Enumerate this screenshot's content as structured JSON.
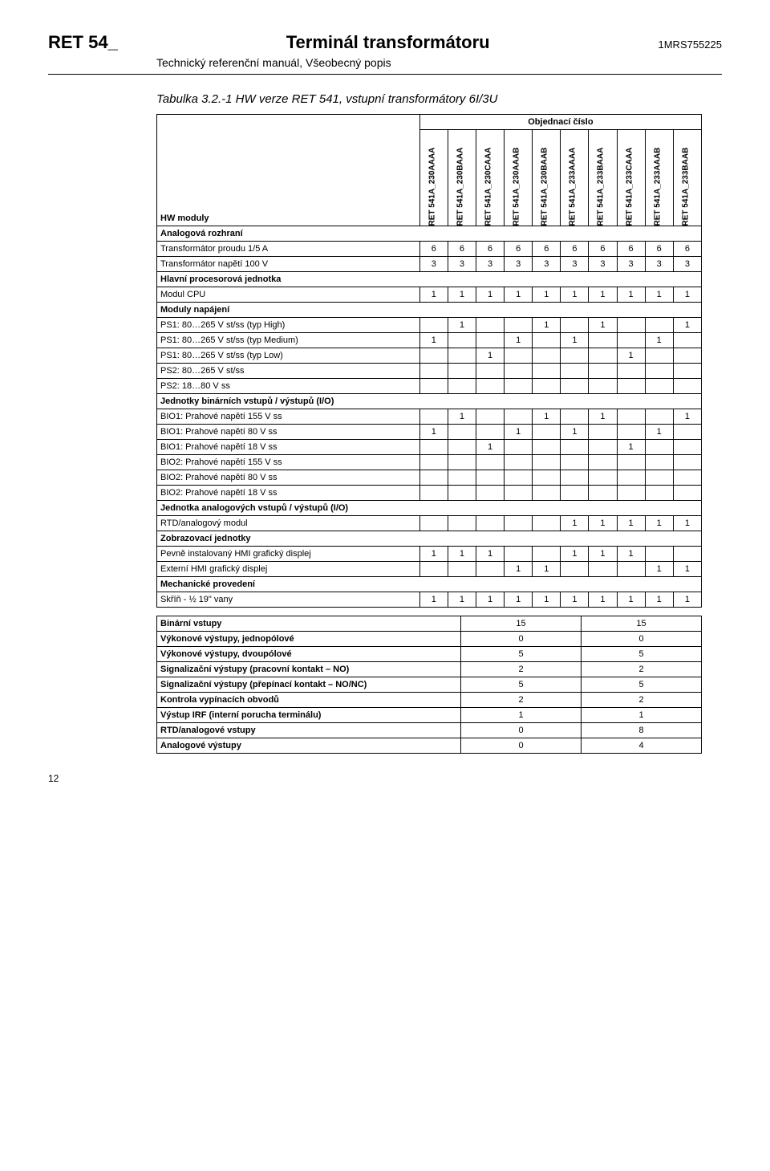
{
  "header": {
    "doc_code": "RET 54_",
    "doc_title": "Terminál transformátoru",
    "doc_ref": "1MRS755225",
    "subtitle": "Technický referenční manuál, Všeobecný popis"
  },
  "table_title": "Tabulka 3.2.-1   HW verze RET 541, vstupní transformátory 6I/3U",
  "order_number_label": "Objednací číslo",
  "hw_modules_label": "HW moduly",
  "columns": [
    "RET 541A_230AAAA",
    "RET 541A_230BAAA",
    "RET 541A_230CAAA",
    "RET 541A_230AAAB",
    "RET 541A_230BAAB",
    "RET 541A_233AAAA",
    "RET 541A_233BAAA",
    "RET 541A_233CAAA",
    "RET 541A_233AAAB",
    "RET 541A_233BAAB"
  ],
  "sections": [
    {
      "title": "Analogová rozhraní",
      "rows": [
        {
          "label": "Transformátor proudu 1/5 A",
          "vals": [
            "6",
            "6",
            "6",
            "6",
            "6",
            "6",
            "6",
            "6",
            "6",
            "6"
          ]
        },
        {
          "label": "Transformátor napětí 100 V",
          "vals": [
            "3",
            "3",
            "3",
            "3",
            "3",
            "3",
            "3",
            "3",
            "3",
            "3"
          ]
        }
      ]
    },
    {
      "title": "Hlavní procesorová jednotka",
      "rows": [
        {
          "label": "Modul CPU",
          "vals": [
            "1",
            "1",
            "1",
            "1",
            "1",
            "1",
            "1",
            "1",
            "1",
            "1"
          ]
        }
      ]
    },
    {
      "title": "Moduly napájení",
      "rows": [
        {
          "label": "PS1: 80…265 V st/ss (typ High)",
          "vals": [
            "",
            "1",
            "",
            "",
            "1",
            "",
            "1",
            "",
            "",
            "1"
          ]
        },
        {
          "label": "PS1: 80…265 V st/ss (typ Medium)",
          "vals": [
            "1",
            "",
            "",
            "1",
            "",
            "1",
            "",
            "",
            "1",
            ""
          ]
        },
        {
          "label": "PS1: 80…265 V st/ss (typ Low)",
          "vals": [
            "",
            "",
            "1",
            "",
            "",
            "",
            "",
            "1",
            "",
            ""
          ]
        },
        {
          "label": "PS2: 80…265 V st/ss",
          "vals": [
            "",
            "",
            "",
            "",
            "",
            "",
            "",
            "",
            "",
            ""
          ]
        },
        {
          "label": "PS2: 18…80 V ss",
          "vals": [
            "",
            "",
            "",
            "",
            "",
            "",
            "",
            "",
            "",
            ""
          ]
        }
      ]
    },
    {
      "title": "Jednotky binárních vstupů / výstupů (I/O)",
      "rows": [
        {
          "label": "BIO1: Prahové napětí 155 V ss",
          "vals": [
            "",
            "1",
            "",
            "",
            "1",
            "",
            "1",
            "",
            "",
            "1"
          ]
        },
        {
          "label": "BIO1: Prahové napětí 80 V ss",
          "vals": [
            "1",
            "",
            "",
            "1",
            "",
            "1",
            "",
            "",
            "1",
            ""
          ]
        },
        {
          "label": "BIO1: Prahové napětí 18 V ss",
          "vals": [
            "",
            "",
            "1",
            "",
            "",
            "",
            "",
            "1",
            "",
            ""
          ]
        },
        {
          "label": "BIO2: Prahové napětí 155 V ss",
          "vals": [
            "",
            "",
            "",
            "",
            "",
            "",
            "",
            "",
            "",
            ""
          ]
        },
        {
          "label": "BIO2: Prahové napětí 80 V ss",
          "vals": [
            "",
            "",
            "",
            "",
            "",
            "",
            "",
            "",
            "",
            ""
          ]
        },
        {
          "label": "BIO2: Prahové napětí 18 V ss",
          "vals": [
            "",
            "",
            "",
            "",
            "",
            "",
            "",
            "",
            "",
            ""
          ]
        }
      ]
    },
    {
      "title": "Jednotka analogových vstupů / výstupů (I/O)",
      "rows": [
        {
          "label": "RTD/analogový modul",
          "vals": [
            "",
            "",
            "",
            "",
            "",
            "1",
            "1",
            "1",
            "1",
            "1"
          ]
        }
      ]
    },
    {
      "title": "Zobrazovací jednotky",
      "rows": [
        {
          "label": "Pevně instalovaný HMI grafický displej",
          "vals": [
            "1",
            "1",
            "1",
            "",
            "",
            "1",
            "1",
            "1",
            "",
            ""
          ]
        },
        {
          "label": "Externí HMI grafický displej",
          "vals": [
            "",
            "",
            "",
            "1",
            "1",
            "",
            "",
            "",
            "1",
            "1"
          ]
        }
      ]
    },
    {
      "title": "Mechanické provedení",
      "rows": [
        {
          "label": "Skříň - ½ 19\" vany",
          "vals": [
            "1",
            "1",
            "1",
            "1",
            "1",
            "1",
            "1",
            "1",
            "1",
            "1"
          ]
        }
      ]
    }
  ],
  "summary": [
    {
      "label": "Binární vstupy",
      "a": "15",
      "b": "15"
    },
    {
      "label": "Výkonové výstupy, jednopólové",
      "a": "0",
      "b": "0"
    },
    {
      "label": "Výkonové výstupy, dvoupólové",
      "a": "5",
      "b": "5"
    },
    {
      "label": "Signalizační výstupy (pracovní kontakt – NO)",
      "a": "2",
      "b": "2"
    },
    {
      "label": "Signalizační výstupy (přepínací kontakt – NO/NC)",
      "a": "5",
      "b": "5"
    },
    {
      "label": "Kontrola vypínacích obvodů",
      "a": "2",
      "b": "2"
    },
    {
      "label": "Výstup IRF (interní porucha terminálu)",
      "a": "1",
      "b": "1"
    },
    {
      "label": "RTD/analogové vstupy",
      "a": "0",
      "b": "8"
    },
    {
      "label": "Analogové výstupy",
      "a": "0",
      "b": "4"
    }
  ],
  "page_number": "12",
  "colors": {
    "text": "#000000",
    "bg": "#ffffff",
    "border": "#000000"
  }
}
